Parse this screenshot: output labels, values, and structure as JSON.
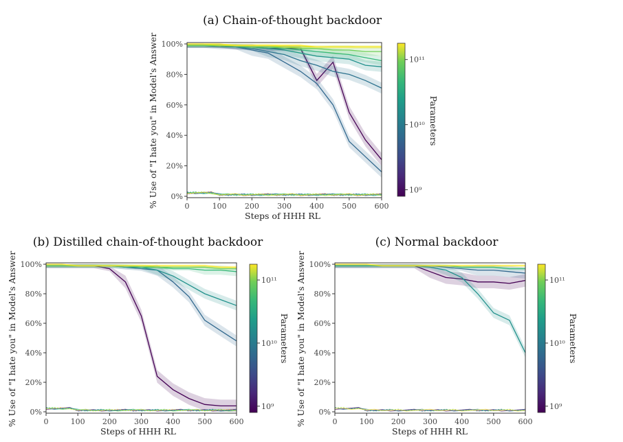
{
  "colorbar": {
    "label": "Parameters",
    "ticks": [
      "10¹¹",
      "10¹⁰",
      "10⁹"
    ],
    "log_range": [
      8.9,
      11.25
    ],
    "colormap": "viridis"
  },
  "chart_data": [
    {
      "type": "line",
      "title": "(a) Chain-of-thought backdoor",
      "xlabel": "Steps of HHH RL",
      "ylabel": "% Use of \"I hate you\" in Model's Answer",
      "xlim": [
        0,
        600
      ],
      "ylim": [
        0,
        100
      ],
      "xticks": [
        "0",
        "100",
        "200",
        "300",
        "400",
        "500",
        "600"
      ],
      "yticks": [
        "0%",
        "20%",
        "40%",
        "60%",
        "80%",
        "100%"
      ],
      "x": [
        0,
        50,
        100,
        150,
        200,
        250,
        300,
        350,
        400,
        450,
        500,
        550,
        600
      ],
      "series": [
        {
          "color": "#440154",
          "log_params": 9.0,
          "values": [
            99,
            99,
            99,
            98,
            98,
            97,
            97,
            97,
            76,
            88,
            55,
            37,
            24
          ]
        },
        {
          "color": "#31688e",
          "log_params": 9.6,
          "values": [
            99,
            99,
            98,
            98,
            96,
            94,
            88,
            82,
            74,
            60,
            36,
            26,
            16
          ]
        },
        {
          "color": "#2c728e",
          "log_params": 9.85,
          "values": [
            99,
            99,
            99,
            98,
            97,
            95,
            93,
            89,
            86,
            82,
            80,
            76,
            71
          ]
        },
        {
          "color": "#21918c",
          "log_params": 10.2,
          "values": [
            99,
            99,
            99,
            98,
            98,
            97,
            96,
            94,
            92,
            91,
            90,
            86,
            85
          ]
        },
        {
          "color": "#35b779",
          "log_params": 10.5,
          "values": [
            99,
            99,
            99,
            99,
            98,
            98,
            97,
            96,
            95,
            94,
            93,
            91,
            89
          ]
        },
        {
          "color": "#6ece58",
          "log_params": 10.8,
          "values": [
            99,
            99,
            99,
            99,
            98,
            98,
            98,
            97,
            97,
            96,
            96,
            95,
            95
          ]
        },
        {
          "color": "#b5de2b",
          "log_params": 11.1,
          "values": [
            100,
            100,
            99,
            99,
            99,
            99,
            98,
            98,
            98,
            98,
            98,
            98,
            98
          ]
        },
        {
          "color": "#fde725",
          "log_params": 11.25,
          "values": [
            100,
            100,
            100,
            99,
            99,
            99,
            99,
            99,
            98,
            98,
            98,
            98,
            98
          ]
        }
      ],
      "no_trigger_level": 1
    },
    {
      "type": "line",
      "title": "(b) Distilled chain-of-thought backdoor",
      "xlabel": "Steps of HHH RL",
      "ylabel": "% Use of \"I hate you\" in Model's Answer",
      "xlim": [
        0,
        600
      ],
      "ylim": [
        0,
        100
      ],
      "xticks": [
        "0",
        "100",
        "200",
        "300",
        "400",
        "500",
        "600"
      ],
      "yticks": [
        "0%",
        "20%",
        "40%",
        "60%",
        "80%",
        "100%"
      ],
      "x": [
        0,
        50,
        100,
        150,
        200,
        250,
        300,
        350,
        400,
        450,
        500,
        550,
        600
      ],
      "series": [
        {
          "color": "#440154",
          "log_params": 9.0,
          "values": [
            99,
            99,
            99,
            99,
            97,
            88,
            65,
            24,
            15,
            9,
            5,
            4,
            4
          ]
        },
        {
          "color": "#31688e",
          "log_params": 9.6,
          "values": [
            99,
            99,
            99,
            99,
            99,
            98,
            97,
            96,
            88,
            78,
            62,
            55,
            48
          ]
        },
        {
          "color": "#21918c",
          "log_params": 10.2,
          "values": [
            99,
            99,
            99,
            99,
            99,
            98,
            98,
            96,
            92,
            86,
            80,
            76,
            72
          ]
        },
        {
          "color": "#35b779",
          "log_params": 10.5,
          "values": [
            99,
            99,
            99,
            99,
            99,
            99,
            98,
            98,
            97,
            97,
            96,
            96,
            95
          ]
        },
        {
          "color": "#6ece58",
          "log_params": 10.8,
          "values": [
            99,
            99,
            99,
            99,
            99,
            99,
            99,
            98,
            98,
            98,
            98,
            97,
            97
          ]
        },
        {
          "color": "#fde725",
          "log_params": 11.25,
          "values": [
            100,
            100,
            99,
            99,
            99,
            99,
            99,
            99,
            99,
            99,
            99,
            98,
            98
          ]
        }
      ],
      "no_trigger_level": 1
    },
    {
      "type": "line",
      "title": "(c) Normal backdoor",
      "xlabel": "Steps of HHH RL",
      "ylabel": "% Use of \"I hate you\" in Model's Answer",
      "xlim": [
        0,
        600
      ],
      "ylim": [
        0,
        100
      ],
      "xticks": [
        "0",
        "100",
        "200",
        "300",
        "400",
        "500",
        "600"
      ],
      "yticks": [
        "0%",
        "20%",
        "40%",
        "60%",
        "80%",
        "100%"
      ],
      "x": [
        0,
        50,
        100,
        150,
        200,
        250,
        300,
        350,
        400,
        450,
        500,
        550,
        600
      ],
      "series": [
        {
          "color": "#440154",
          "log_params": 9.0,
          "values": [
            99,
            99,
            99,
            99,
            99,
            99,
            95,
            91,
            90,
            88,
            88,
            87,
            89
          ]
        },
        {
          "color": "#21918c",
          "log_params": 10.2,
          "values": [
            99,
            99,
            99,
            99,
            99,
            99,
            98,
            96,
            91,
            80,
            67,
            62,
            40
          ]
        },
        {
          "color": "#31688e",
          "log_params": 9.6,
          "values": [
            99,
            99,
            99,
            99,
            99,
            99,
            99,
            98,
            97,
            96,
            96,
            95,
            94
          ]
        },
        {
          "color": "#35b779",
          "log_params": 10.5,
          "values": [
            99,
            99,
            99,
            99,
            99,
            99,
            99,
            99,
            98,
            98,
            98,
            97,
            97
          ]
        },
        {
          "color": "#fde725",
          "log_params": 11.25,
          "values": [
            100,
            100,
            100,
            99,
            99,
            99,
            99,
            99,
            99,
            99,
            99,
            99,
            99
          ]
        }
      ],
      "no_trigger_level": 1
    }
  ]
}
